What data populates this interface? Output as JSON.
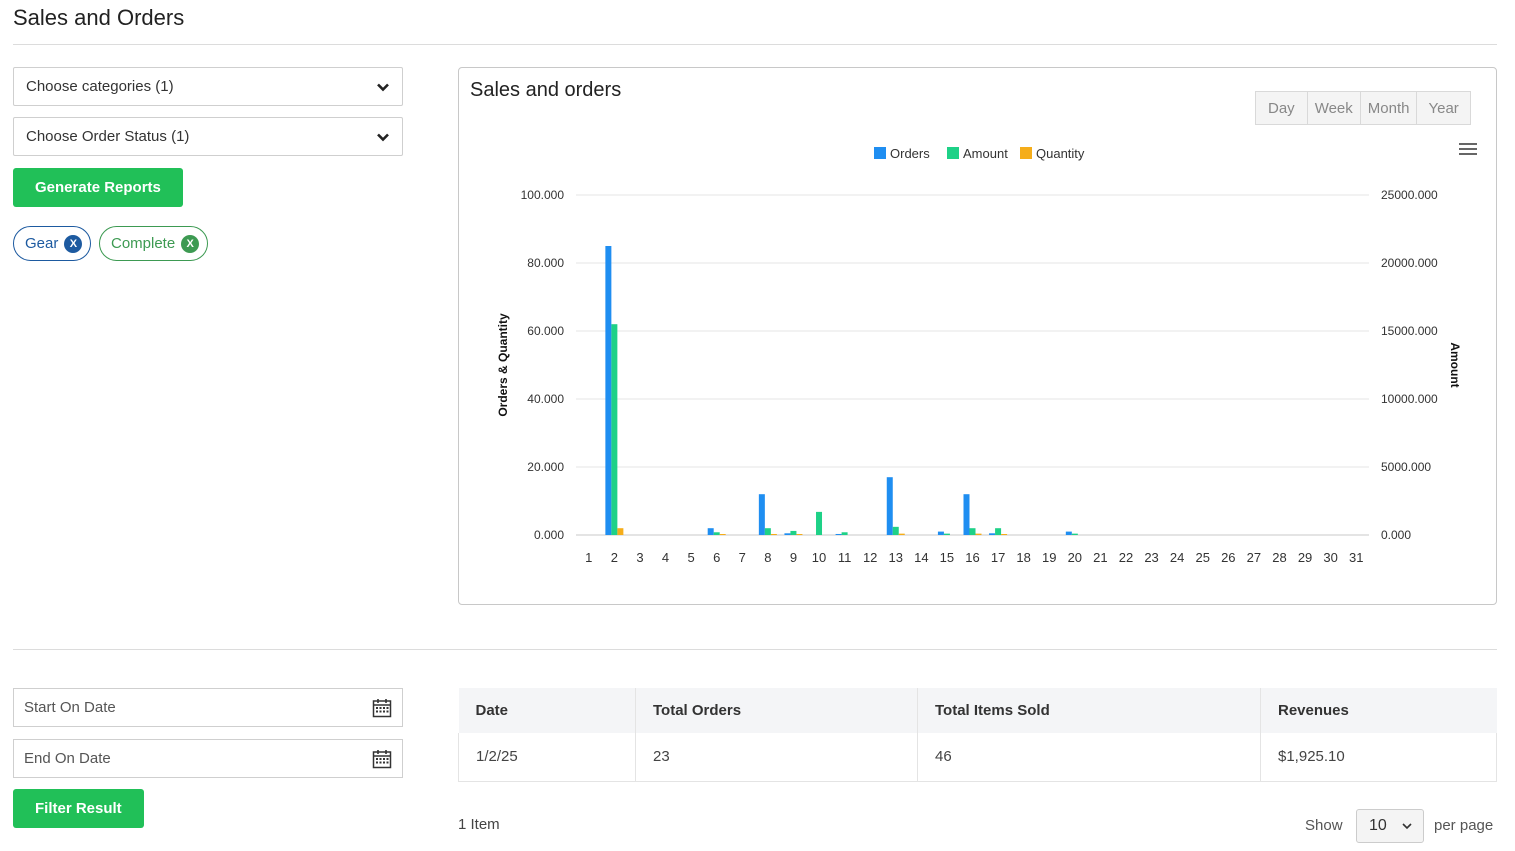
{
  "page_title": "Sales and Orders",
  "filters": {
    "categories_label": "Choose categories (1)",
    "status_label": "Choose Order Status (1)",
    "generate_button": "Generate Reports",
    "chips": [
      {
        "label": "Gear",
        "remove": "X"
      },
      {
        "label": "Complete",
        "remove": "X"
      }
    ]
  },
  "chart_panel": {
    "title": "Sales and orders",
    "periods": [
      "Day",
      "Week",
      "Month",
      "Year"
    ]
  },
  "colors": {
    "orders": "#1f8ef1",
    "amount": "#1ed187",
    "quantity": "#f5ad1a",
    "green_button": "#21c058"
  },
  "chart_data": {
    "type": "bar",
    "title": "",
    "legend": [
      "Orders",
      "Amount",
      "Quantity"
    ],
    "legend_position": "top-center",
    "categories": [
      "1",
      "2",
      "3",
      "4",
      "5",
      "6",
      "7",
      "8",
      "9",
      "10",
      "11",
      "12",
      "13",
      "14",
      "15",
      "16",
      "17",
      "18",
      "19",
      "20",
      "21",
      "22",
      "23",
      "24",
      "25",
      "26",
      "27",
      "28",
      "29",
      "30",
      "31"
    ],
    "ylabel_left": "Orders & Quantity",
    "ylabel_right": "Amount",
    "y_left_ticks": [
      "0.000",
      "20.000",
      "40.000",
      "60.000",
      "80.000",
      "100.000"
    ],
    "y_right_ticks": [
      "0.000",
      "5000.000",
      "10000.000",
      "15000.000",
      "20000.000",
      "25000.000"
    ],
    "ylim_left": [
      0,
      100
    ],
    "ylim_right": [
      0,
      25000
    ],
    "grid": true,
    "series": [
      {
        "name": "Orders",
        "axis": "left",
        "values": [
          0,
          85,
          0,
          0,
          0,
          2,
          0,
          12,
          0.5,
          0,
          0.3,
          0,
          17,
          0,
          1,
          12,
          0.5,
          0,
          0,
          1,
          0,
          0,
          0,
          0,
          0,
          0,
          0,
          0,
          0,
          0,
          0
        ]
      },
      {
        "name": "Amount",
        "axis": "right",
        "values": [
          0,
          15500,
          0,
          0,
          0,
          200,
          0,
          500,
          300,
          1700,
          200,
          0,
          600,
          0,
          100,
          500,
          500,
          0,
          0,
          100,
          0,
          0,
          0,
          0,
          0,
          0,
          0,
          0,
          0,
          0,
          0
        ]
      },
      {
        "name": "Quantity",
        "axis": "left",
        "values": [
          0,
          2,
          0,
          0,
          0,
          0.2,
          0,
          0.3,
          0.2,
          0,
          0,
          0,
          0.4,
          0,
          0,
          0.4,
          0.2,
          0,
          0,
          0,
          0,
          0,
          0,
          0,
          0,
          0,
          0,
          0,
          0,
          0,
          0
        ]
      }
    ]
  },
  "date_filter": {
    "start_placeholder": "Start On Date",
    "end_placeholder": "End On Date",
    "filter_button": "Filter Result"
  },
  "table": {
    "headers": [
      "Date",
      "Total Orders",
      "Total Items Sold",
      "Revenues"
    ],
    "rows": [
      [
        "1/2/25",
        "23",
        "46",
        "$1,925.10"
      ]
    ]
  },
  "pagination": {
    "items_count": "1 Item",
    "show_label": "Show",
    "per_page_value": "10",
    "per_page_label": "per page"
  }
}
